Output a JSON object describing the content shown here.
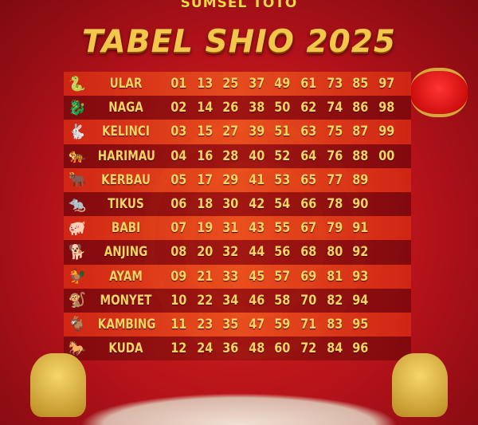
{
  "logo": "SUMSEL TOTO",
  "title": "TABEL SHIO 2025",
  "rows": [
    {
      "shio": "ULAR",
      "icon": "snake-icon",
      "numbers": [
        "01",
        "13",
        "25",
        "37",
        "49",
        "61",
        "73",
        "85",
        "97"
      ]
    },
    {
      "shio": "NAGA",
      "icon": "dragon-icon",
      "numbers": [
        "02",
        "14",
        "26",
        "38",
        "50",
        "62",
        "74",
        "86",
        "98"
      ]
    },
    {
      "shio": "KELINCI",
      "icon": "rabbit-icon",
      "numbers": [
        "03",
        "15",
        "27",
        "39",
        "51",
        "63",
        "75",
        "87",
        "99"
      ]
    },
    {
      "shio": "HARIMAU",
      "icon": "tiger-icon",
      "numbers": [
        "04",
        "16",
        "28",
        "40",
        "52",
        "64",
        "76",
        "88",
        "00"
      ]
    },
    {
      "shio": "KERBAU",
      "icon": "ox-icon",
      "numbers": [
        "05",
        "17",
        "29",
        "41",
        "53",
        "65",
        "77",
        "89"
      ]
    },
    {
      "shio": "TIKUS",
      "icon": "rat-icon",
      "numbers": [
        "06",
        "18",
        "30",
        "42",
        "54",
        "66",
        "78",
        "90"
      ]
    },
    {
      "shio": "BABI",
      "icon": "pig-icon",
      "numbers": [
        "07",
        "19",
        "31",
        "43",
        "55",
        "67",
        "79",
        "91"
      ]
    },
    {
      "shio": "ANJING",
      "icon": "dog-icon",
      "numbers": [
        "08",
        "20",
        "32",
        "44",
        "56",
        "68",
        "80",
        "92"
      ]
    },
    {
      "shio": "AYAM",
      "icon": "rooster-icon",
      "numbers": [
        "09",
        "21",
        "33",
        "45",
        "57",
        "69",
        "81",
        "93"
      ]
    },
    {
      "shio": "MONYET",
      "icon": "monkey-icon",
      "numbers": [
        "10",
        "22",
        "34",
        "46",
        "58",
        "70",
        "82",
        "94"
      ]
    },
    {
      "shio": "KAMBING",
      "icon": "goat-icon",
      "numbers": [
        "11",
        "23",
        "35",
        "47",
        "59",
        "71",
        "83",
        "95"
      ]
    },
    {
      "shio": "KUDA",
      "icon": "horse-icon",
      "numbers": [
        "12",
        "24",
        "36",
        "48",
        "60",
        "72",
        "84",
        "96"
      ]
    }
  ],
  "colors": {
    "gold": "#f6d564",
    "red": "#b3121a"
  }
}
